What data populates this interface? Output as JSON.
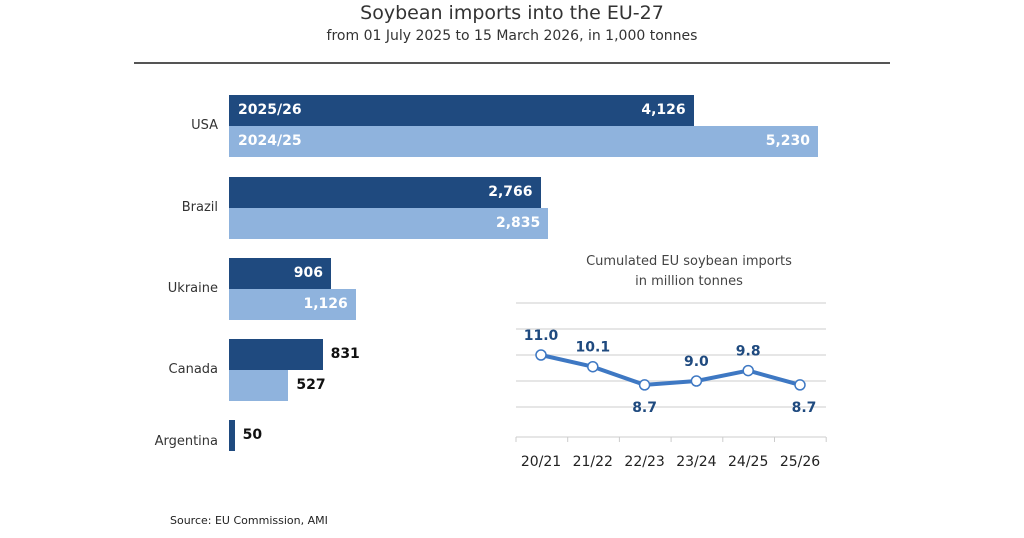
{
  "chart_data": [
    {
      "type": "bar",
      "orientation": "horizontal",
      "title": "Soybean imports into the EU-27",
      "subtitle": "from 01 July 2025 to 15 March 2026, in 1,000 tonnes",
      "categories": [
        "USA",
        "Brazil",
        "Ukraine",
        "Canada",
        "Argentina"
      ],
      "series": [
        {
          "name": "2025/26",
          "color": "#1f4a7f",
          "values": [
            4126,
            2766,
            906,
            831,
            50
          ],
          "labels": [
            "4,126",
            "2,766",
            "906",
            "831",
            "50"
          ]
        },
        {
          "name": "2024/25",
          "color": "#8fb3dd",
          "values": [
            5230,
            2835,
            1126,
            527,
            null
          ],
          "labels": [
            "5,230",
            "2,835",
            "1,126",
            "527",
            ""
          ]
        }
      ]
    },
    {
      "type": "line",
      "title": "Cumulated EU soybean imports",
      "subtitle": "in million tonnes",
      "categories": [
        "20/21",
        "21/22",
        "22/23",
        "23/24",
        "24/25",
        "25/26"
      ],
      "values": [
        11.0,
        10.1,
        8.7,
        9.0,
        9.8,
        8.7
      ],
      "labels": [
        "11.0",
        "10.1",
        "8.7",
        "9.0",
        "9.8",
        "8.7"
      ],
      "color": "#3e78c3",
      "label_color": "#1f4a7f",
      "grid": true
    }
  ],
  "source": "Source:  EU Commission, AMI"
}
